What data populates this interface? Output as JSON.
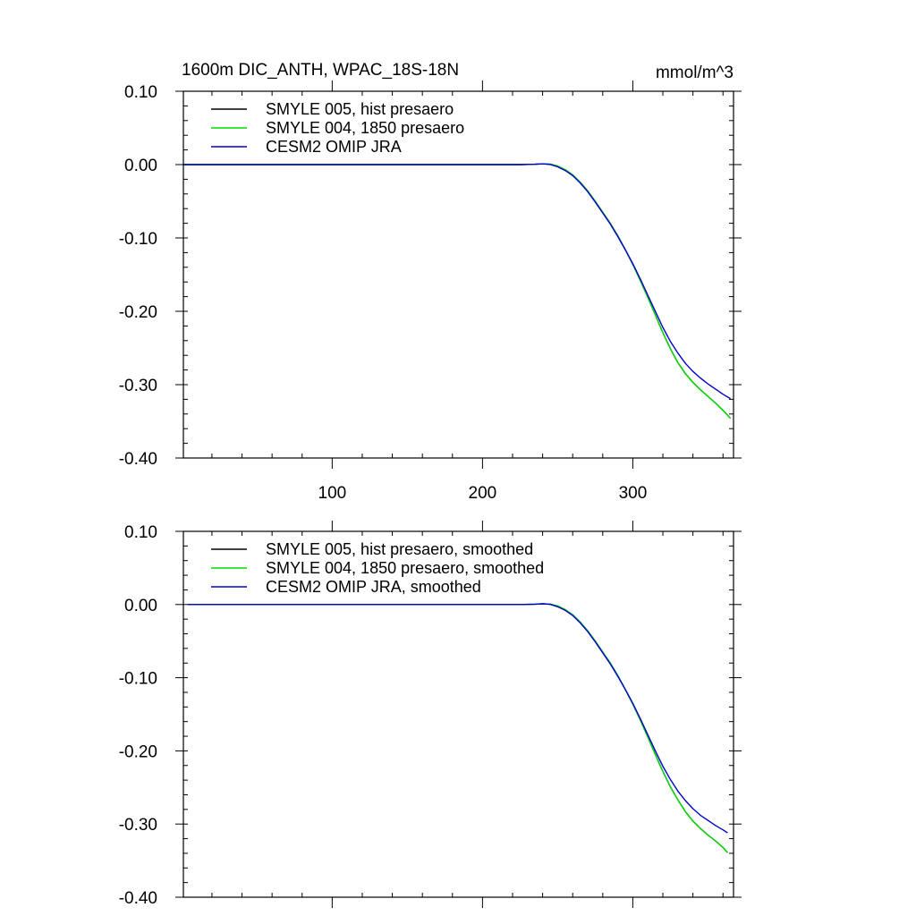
{
  "figure": {
    "title": "1600m DIC_ANTH, WPAC_18S-18N",
    "units": "mmol/m^3"
  },
  "chart_data": [
    {
      "type": "line",
      "title": "1600m DIC_ANTH, WPAC_18S-18N",
      "units_label": "mmol/m^3",
      "xlabel": "",
      "ylabel": "",
      "xlim": [
        1,
        367
      ],
      "ylim": [
        -0.4,
        0.1
      ],
      "xticks": [
        100,
        200,
        300
      ],
      "xtick_labels": [
        "100",
        "200",
        "300"
      ],
      "yticks": [
        0.1,
        0.0,
        -0.1,
        -0.2,
        -0.3,
        -0.4
      ],
      "ytick_labels": [
        "0.10",
        "0.00",
        "-0.10",
        "-0.20",
        "-0.30",
        "-0.40"
      ],
      "legend_position": "top-left",
      "series": [
        {
          "name": "SMYLE 005, hist presaero",
          "color": "#000000",
          "points": [
            [
              1,
              0
            ],
            [
              50,
              0
            ],
            [
              100,
              0
            ],
            [
              150,
              0
            ],
            [
              200,
              0
            ],
            [
              225,
              0
            ],
            [
              235,
              0.0005
            ],
            [
              240,
              0.001
            ],
            [
              245,
              0.0005
            ],
            [
              250,
              -0.002
            ],
            [
              255,
              -0.007
            ],
            [
              260,
              -0.014
            ],
            [
              265,
              -0.024
            ],
            [
              270,
              -0.036
            ],
            [
              275,
              -0.05
            ],
            [
              280,
              -0.065
            ],
            [
              285,
              -0.08
            ],
            [
              290,
              -0.097
            ],
            [
              295,
              -0.116
            ],
            [
              300,
              -0.136
            ],
            [
              305,
              -0.158
            ],
            [
              310,
              -0.181
            ],
            [
              315,
              -0.205
            ],
            [
              320,
              -0.229
            ],
            [
              325,
              -0.251
            ],
            [
              330,
              -0.27
            ],
            [
              335,
              -0.285
            ],
            [
              340,
              -0.297
            ],
            [
              345,
              -0.307
            ],
            [
              350,
              -0.316
            ],
            [
              355,
              -0.325
            ],
            [
              360,
              -0.335
            ],
            [
              365,
              -0.346
            ]
          ]
        },
        {
          "name": "SMYLE 004, 1850 presaero",
          "color": "#00dd00",
          "points": [
            [
              1,
              0
            ],
            [
              50,
              0
            ],
            [
              100,
              0
            ],
            [
              150,
              0
            ],
            [
              200,
              0
            ],
            [
              225,
              0
            ],
            [
              235,
              0.0005
            ],
            [
              240,
              0.001
            ],
            [
              245,
              0.0005
            ],
            [
              250,
              -0.002
            ],
            [
              255,
              -0.007
            ],
            [
              260,
              -0.014
            ],
            [
              265,
              -0.024
            ],
            [
              270,
              -0.036
            ],
            [
              275,
              -0.05
            ],
            [
              280,
              -0.065
            ],
            [
              285,
              -0.08
            ],
            [
              290,
              -0.097
            ],
            [
              295,
              -0.116
            ],
            [
              300,
              -0.136
            ],
            [
              305,
              -0.158
            ],
            [
              310,
              -0.181
            ],
            [
              315,
              -0.205
            ],
            [
              320,
              -0.229
            ],
            [
              325,
              -0.251
            ],
            [
              330,
              -0.27
            ],
            [
              335,
              -0.285
            ],
            [
              340,
              -0.297
            ],
            [
              345,
              -0.307
            ],
            [
              350,
              -0.316
            ],
            [
              355,
              -0.325
            ],
            [
              360,
              -0.335
            ],
            [
              365,
              -0.346
            ]
          ]
        },
        {
          "name": "CESM2 OMIP JRA",
          "color": "#0000cc",
          "points": [
            [
              1,
              0
            ],
            [
              50,
              0
            ],
            [
              100,
              0
            ],
            [
              150,
              0
            ],
            [
              200,
              0
            ],
            [
              225,
              0
            ],
            [
              235,
              0.0005
            ],
            [
              240,
              0.001
            ],
            [
              245,
              0.0003
            ],
            [
              250,
              -0.003
            ],
            [
              255,
              -0.008
            ],
            [
              260,
              -0.015
            ],
            [
              265,
              -0.025
            ],
            [
              270,
              -0.037
            ],
            [
              275,
              -0.051
            ],
            [
              280,
              -0.066
            ],
            [
              285,
              -0.081
            ],
            [
              290,
              -0.098
            ],
            [
              295,
              -0.116
            ],
            [
              300,
              -0.135
            ],
            [
              305,
              -0.156
            ],
            [
              310,
              -0.178
            ],
            [
              315,
              -0.2
            ],
            [
              320,
              -0.222
            ],
            [
              325,
              -0.241
            ],
            [
              330,
              -0.257
            ],
            [
              335,
              -0.271
            ],
            [
              340,
              -0.282
            ],
            [
              345,
              -0.291
            ],
            [
              350,
              -0.299
            ],
            [
              355,
              -0.306
            ],
            [
              360,
              -0.313
            ],
            [
              365,
              -0.319
            ]
          ]
        }
      ]
    },
    {
      "type": "line",
      "title": "",
      "xlabel": "",
      "ylabel": "",
      "xlim": [
        1,
        367
      ],
      "ylim": [
        -0.4,
        0.1
      ],
      "xticks": [
        100,
        200,
        300
      ],
      "xtick_labels": [],
      "yticks": [
        0.1,
        0.0,
        -0.1,
        -0.2,
        -0.3,
        -0.4
      ],
      "ytick_labels": [
        "0.10",
        "0.00",
        "-0.10",
        "-0.20",
        "-0.30",
        "-0.40"
      ],
      "legend_position": "top-left",
      "series": [
        {
          "name": "SMYLE 005, hist presaero, smoothed",
          "color": "#000000",
          "points": [
            [
              4,
              0
            ],
            [
              50,
              0
            ],
            [
              100,
              0
            ],
            [
              150,
              0
            ],
            [
              200,
              0
            ],
            [
              225,
              0
            ],
            [
              235,
              0.0005
            ],
            [
              240,
              0.001
            ],
            [
              245,
              0.0005
            ],
            [
              250,
              -0.002
            ],
            [
              255,
              -0.007
            ],
            [
              260,
              -0.014
            ],
            [
              265,
              -0.024
            ],
            [
              270,
              -0.036
            ],
            [
              275,
              -0.05
            ],
            [
              280,
              -0.065
            ],
            [
              285,
              -0.08
            ],
            [
              290,
              -0.097
            ],
            [
              295,
              -0.116
            ],
            [
              300,
              -0.136
            ],
            [
              305,
              -0.158
            ],
            [
              310,
              -0.181
            ],
            [
              315,
              -0.205
            ],
            [
              320,
              -0.228
            ],
            [
              325,
              -0.249
            ],
            [
              330,
              -0.267
            ],
            [
              335,
              -0.283
            ],
            [
              340,
              -0.296
            ],
            [
              345,
              -0.306
            ],
            [
              350,
              -0.315
            ],
            [
              355,
              -0.323
            ],
            [
              360,
              -0.332
            ],
            [
              363,
              -0.339
            ]
          ]
        },
        {
          "name": "SMYLE 004, 1850 presaero, smoothed",
          "color": "#00dd00",
          "points": [
            [
              4,
              0
            ],
            [
              50,
              0
            ],
            [
              100,
              0
            ],
            [
              150,
              0
            ],
            [
              200,
              0
            ],
            [
              225,
              0
            ],
            [
              235,
              0.0005
            ],
            [
              240,
              0.001
            ],
            [
              245,
              0.0005
            ],
            [
              250,
              -0.002
            ],
            [
              255,
              -0.007
            ],
            [
              260,
              -0.014
            ],
            [
              265,
              -0.024
            ],
            [
              270,
              -0.036
            ],
            [
              275,
              -0.05
            ],
            [
              280,
              -0.065
            ],
            [
              285,
              -0.08
            ],
            [
              290,
              -0.097
            ],
            [
              295,
              -0.116
            ],
            [
              300,
              -0.136
            ],
            [
              305,
              -0.158
            ],
            [
              310,
              -0.181
            ],
            [
              315,
              -0.205
            ],
            [
              320,
              -0.228
            ],
            [
              325,
              -0.249
            ],
            [
              330,
              -0.267
            ],
            [
              335,
              -0.283
            ],
            [
              340,
              -0.296
            ],
            [
              345,
              -0.306
            ],
            [
              350,
              -0.315
            ],
            [
              355,
              -0.323
            ],
            [
              360,
              -0.332
            ],
            [
              363,
              -0.339
            ]
          ]
        },
        {
          "name": "CESM2 OMIP JRA, smoothed",
          "color": "#0000cc",
          "points": [
            [
              4,
              0
            ],
            [
              50,
              0
            ],
            [
              100,
              0
            ],
            [
              150,
              0
            ],
            [
              200,
              0
            ],
            [
              225,
              0
            ],
            [
              235,
              0.0005
            ],
            [
              240,
              0.001
            ],
            [
              245,
              0.0003
            ],
            [
              250,
              -0.003
            ],
            [
              255,
              -0.008
            ],
            [
              260,
              -0.015
            ],
            [
              265,
              -0.025
            ],
            [
              270,
              -0.037
            ],
            [
              275,
              -0.051
            ],
            [
              280,
              -0.066
            ],
            [
              285,
              -0.081
            ],
            [
              290,
              -0.098
            ],
            [
              295,
              -0.116
            ],
            [
              300,
              -0.135
            ],
            [
              305,
              -0.156
            ],
            [
              310,
              -0.178
            ],
            [
              315,
              -0.2
            ],
            [
              320,
              -0.221
            ],
            [
              325,
              -0.239
            ],
            [
              330,
              -0.255
            ],
            [
              335,
              -0.268
            ],
            [
              340,
              -0.279
            ],
            [
              345,
              -0.288
            ],
            [
              350,
              -0.295
            ],
            [
              355,
              -0.302
            ],
            [
              360,
              -0.308
            ],
            [
              363,
              -0.312
            ]
          ]
        }
      ]
    }
  ]
}
